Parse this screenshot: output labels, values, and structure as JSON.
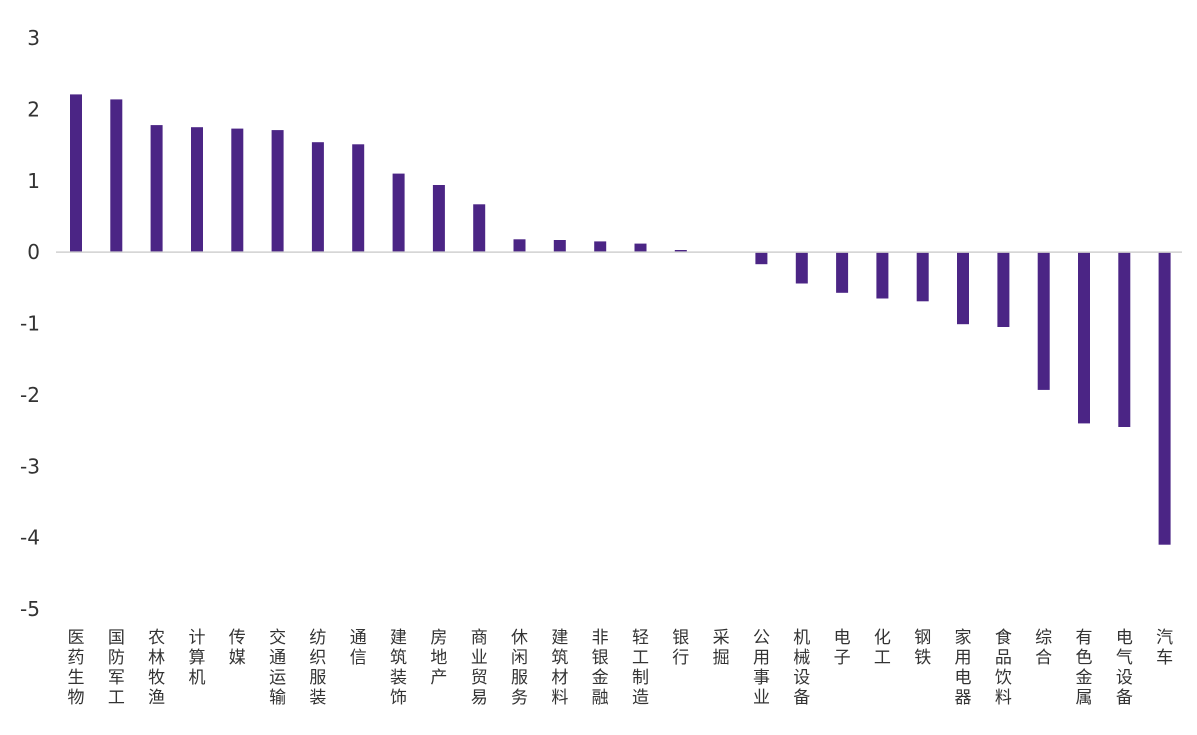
{
  "chart_data": {
    "type": "bar",
    "title": "",
    "xlabel": "",
    "ylabel": "",
    "ylim": [
      -5,
      3
    ],
    "yticks": [
      3,
      2,
      1,
      0,
      -1,
      -2,
      -3,
      -4,
      -5
    ],
    "grid": false,
    "legend": "none",
    "bar_color": "#4b2585",
    "categories": [
      "医药生物",
      "国防军工",
      "农林牧渔",
      "计算机",
      "传媒",
      "交通运输",
      "纺织服装",
      "通信",
      "建筑装饰",
      "房地产",
      "商业贸易",
      "休闲服务",
      "建筑材料",
      "非银金融",
      "轻工制造",
      "银行",
      "采掘",
      "公用事业",
      "机械设备",
      "电子",
      "化工",
      "钢铁",
      "家用电器",
      "食品饮料",
      "综合",
      "有色金属",
      "电气设备",
      "汽车"
    ],
    "values": [
      2.21,
      2.14,
      1.78,
      1.75,
      1.73,
      1.71,
      1.54,
      1.51,
      1.1,
      0.94,
      0.67,
      0.18,
      0.17,
      0.15,
      0.12,
      0.03,
      0.0,
      -0.17,
      -0.44,
      -0.57,
      -0.65,
      -0.69,
      -1.01,
      -1.05,
      -1.93,
      -2.4,
      -2.45,
      -4.1
    ]
  }
}
